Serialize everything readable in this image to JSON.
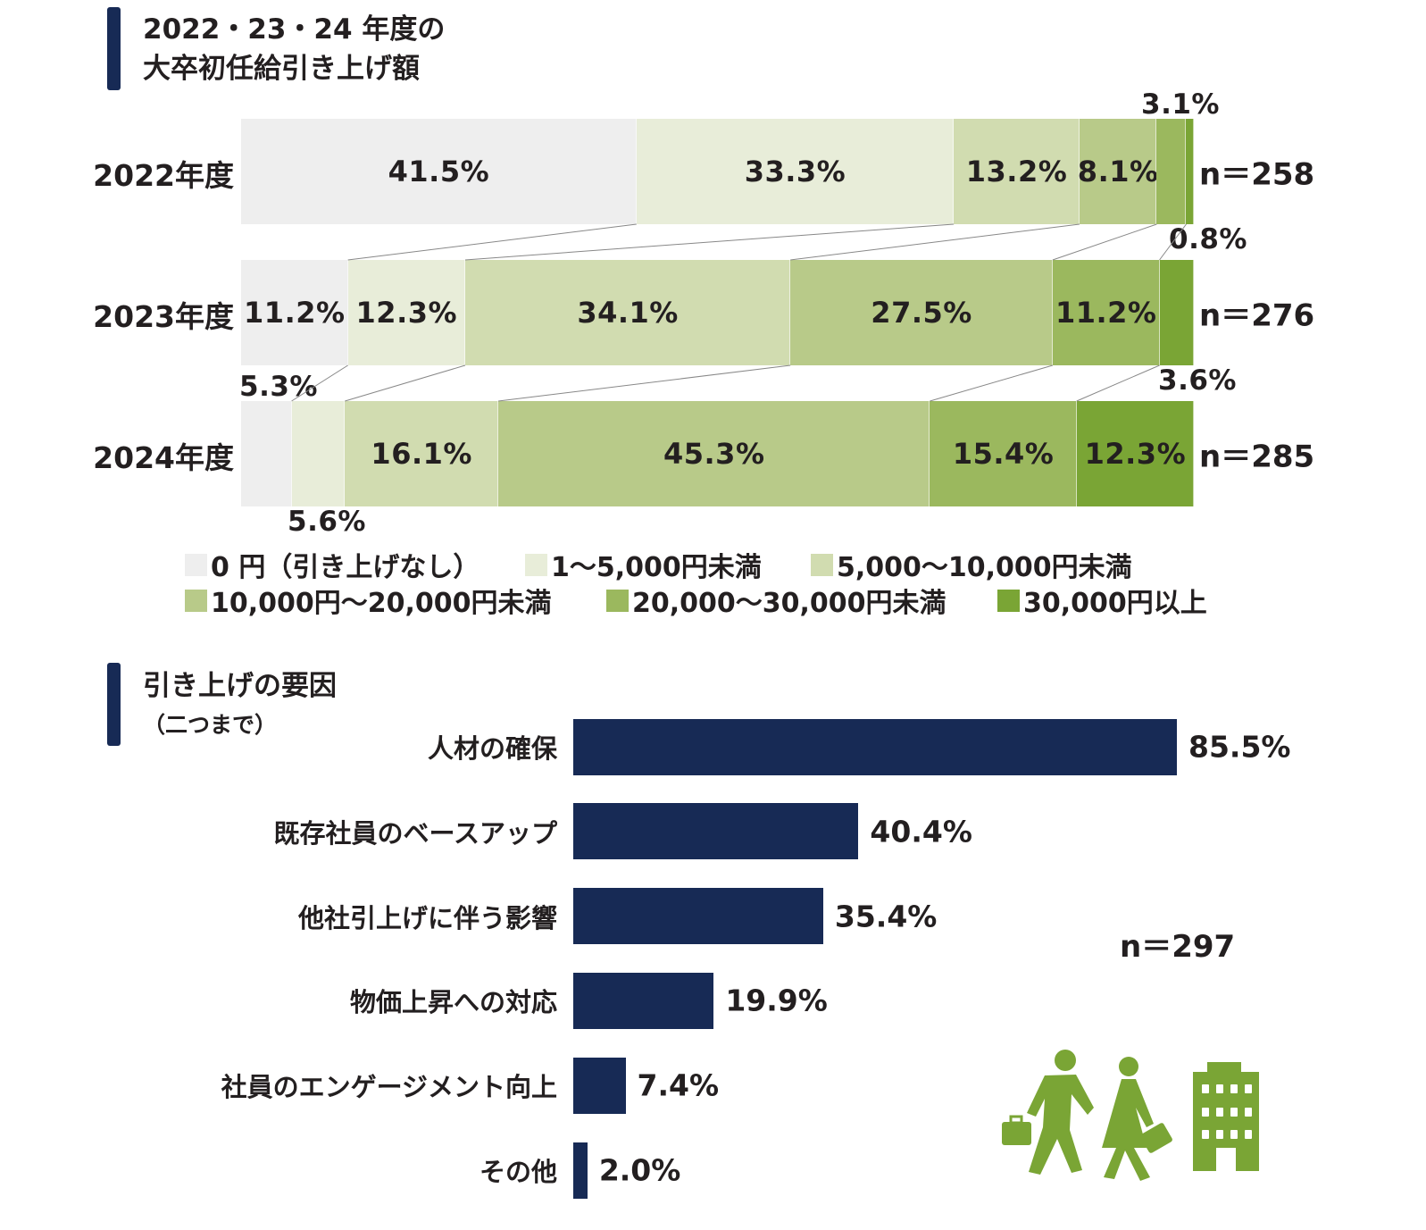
{
  "chart_data": [
    {
      "type": "bar",
      "orientation": "horizontal-stacked-100",
      "title": [
        "2022・23・24 年度の",
        "大卒初任給引き上げ額"
      ],
      "categories": [
        "2022年度",
        "2023年度",
        "2024年度"
      ],
      "n_labels": [
        "n＝258",
        "n＝276",
        "n＝285"
      ],
      "legend": [
        "0 円（引き上げなし）",
        "1〜5,000円未満",
        "5,000〜10,000円未満",
        "10,000円〜20,000円未満",
        "20,000〜30,000円未満",
        "30,000円以上"
      ],
      "legend_placement": "bottom",
      "colors": [
        "#eeeeee",
        "#e8edd9",
        "#d1dcb0",
        "#b8ca89",
        "#9bb85e",
        "#7aa535"
      ],
      "values": [
        [
          41.5,
          33.3,
          13.2,
          8.1,
          3.1,
          0.8
        ],
        [
          11.2,
          12.3,
          34.1,
          27.5,
          11.2,
          3.6
        ],
        [
          5.3,
          5.6,
          16.1,
          45.3,
          15.4,
          12.3
        ]
      ],
      "value_labels": [
        [
          "41.5%",
          "33.3%",
          "13.2%",
          "8.1%",
          "3.1%",
          "0.8%"
        ],
        [
          "11.2%",
          "12.3%",
          "34.1%",
          "27.5%",
          "11.2%",
          "3.6%"
        ],
        [
          "5.3%",
          "5.6%",
          "16.1%",
          "45.3%",
          "15.4%",
          "12.3%"
        ]
      ],
      "xlim": [
        0,
        100
      ],
      "connector_lines": true
    },
    {
      "type": "bar",
      "orientation": "horizontal",
      "title": [
        "引き上げの要因",
        "（二つまで）"
      ],
      "categories": [
        "人材の確保",
        "既存社員のベースアップ",
        "他社引上げに伴う影響",
        "物価上昇への対応",
        "社員のエンゲージメント向上",
        "その他"
      ],
      "values": [
        85.5,
        40.4,
        35.4,
        19.9,
        7.4,
        2.0
      ],
      "value_labels": [
        "85.5%",
        "40.4%",
        "35.4%",
        "19.9%",
        "7.4%",
        "2.0%"
      ],
      "n_label": "n＝297",
      "color": "#172a55",
      "xlim": [
        0,
        85.5
      ]
    }
  ],
  "accent_color": "#172a55",
  "icons": [
    "businessman-with-briefcase-icon",
    "businesswoman-with-briefcase-icon",
    "office-building-icon"
  ],
  "icon_color": "#7aa535"
}
